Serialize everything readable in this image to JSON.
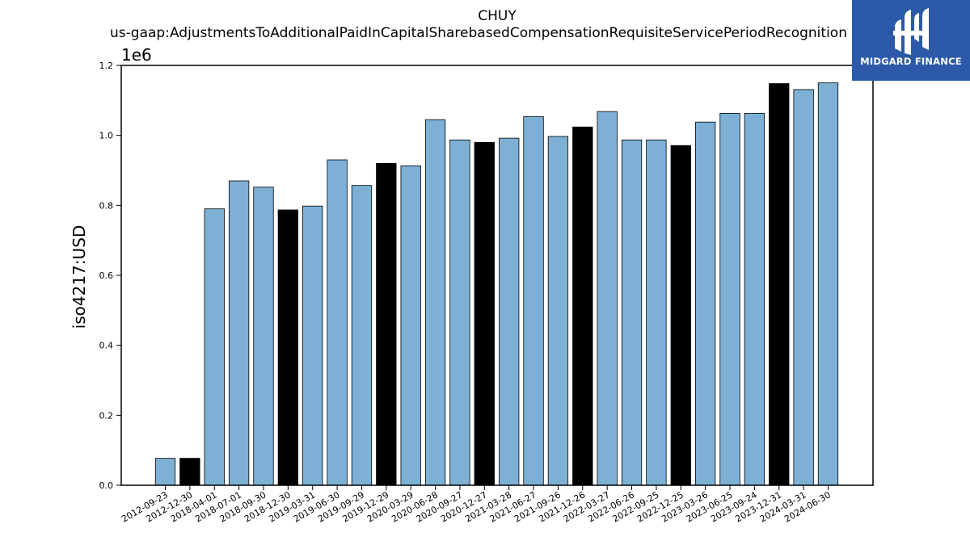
{
  "chart_data": {
    "type": "bar",
    "title": "CHUY",
    "subtitle": "us-gaap:AdjustmentsToAdditionalPaidInCapitalSharebasedCompensationRequisiteServicePeriodRecognition",
    "xlabel": "",
    "ylabel": "iso4217:USD",
    "y_scale_label": "1e6",
    "ylim": [
      0,
      1.2
    ],
    "y_ticks": [
      "0.0",
      "0.2",
      "0.4",
      "0.6",
      "0.8",
      "1.0",
      "1.2"
    ],
    "grid": false,
    "categories": [
      "2012-09-23",
      "2012-12-30",
      "2018-04-01",
      "2018-07-01",
      "2018-09-30",
      "2018-12-30",
      "2019-03-31",
      "2019-06-30",
      "2019-09-29",
      "2019-12-29",
      "2020-03-29",
      "2020-06-28",
      "2020-09-27",
      "2020-12-27",
      "2021-03-28",
      "2021-06-27",
      "2021-09-26",
      "2021-12-26",
      "2022-03-27",
      "2022-06-26",
      "2022-09-25",
      "2022-12-25",
      "2023-03-26",
      "2023-06-25",
      "2023-09-24",
      "2023-12-31",
      "2024-03-31",
      "2024-06-30"
    ],
    "values": [
      0.077,
      0.077,
      0.79,
      0.87,
      0.852,
      0.787,
      0.798,
      0.93,
      0.857,
      0.92,
      0.913,
      1.045,
      0.987,
      0.98,
      0.992,
      1.054,
      0.997,
      1.024,
      1.068,
      0.987,
      0.987,
      0.971,
      1.038,
      1.063,
      1.063,
      1.148,
      1.131,
      1.15
    ],
    "bar_colors": [
      "#7eb0d5",
      "#000000",
      "#7eb0d5",
      "#7eb0d5",
      "#7eb0d5",
      "#000000",
      "#7eb0d5",
      "#7eb0d5",
      "#7eb0d5",
      "#000000",
      "#7eb0d5",
      "#7eb0d5",
      "#7eb0d5",
      "#000000",
      "#7eb0d5",
      "#7eb0d5",
      "#7eb0d5",
      "#000000",
      "#7eb0d5",
      "#7eb0d5",
      "#7eb0d5",
      "#000000",
      "#7eb0d5",
      "#7eb0d5",
      "#7eb0d5",
      "#000000",
      "#7eb0d5",
      "#7eb0d5"
    ]
  },
  "logo": {
    "text": "MIDGARD FINANCE",
    "background": "#2c5aa8"
  }
}
